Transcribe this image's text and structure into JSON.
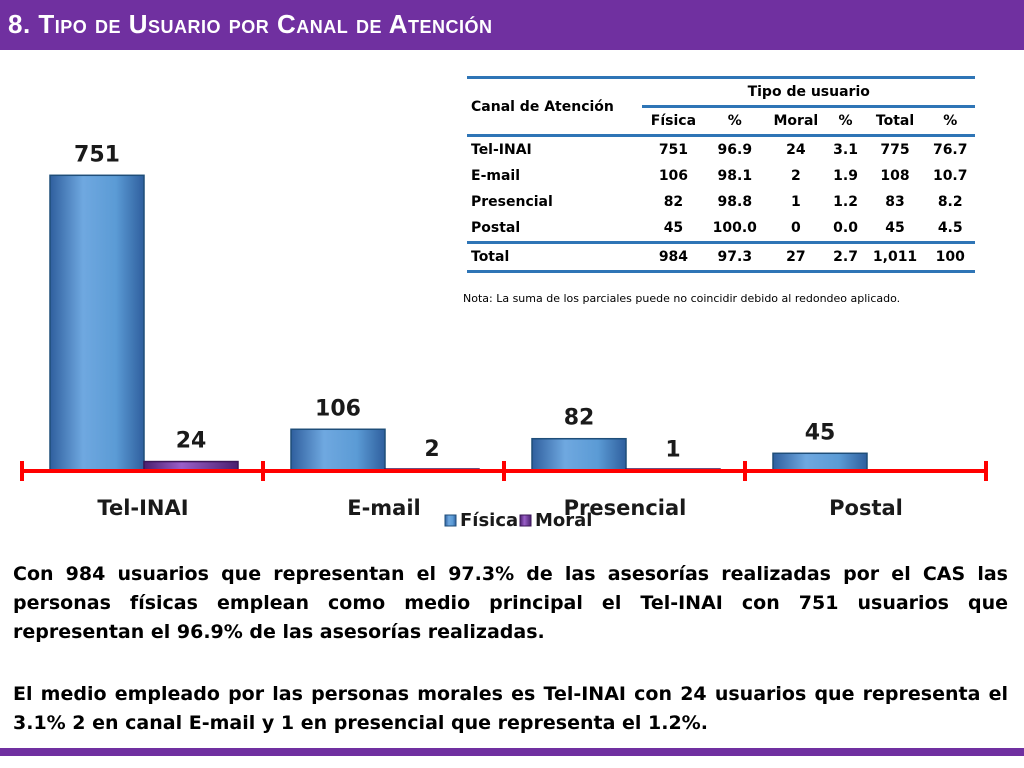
{
  "title": "8. Tipo de Usuario por Canal de Atención",
  "chart_data": {
    "type": "bar",
    "categories": [
      "Tel-INAI",
      "E-mail",
      "Presencial",
      "Postal"
    ],
    "series": [
      {
        "name": "Física",
        "values": [
          751,
          106,
          82,
          45
        ]
      },
      {
        "name": "Moral",
        "values": [
          24,
          2,
          1,
          0
        ]
      }
    ],
    "value_labels": [
      "751",
      "24",
      "106",
      "2",
      "82",
      "1",
      "45"
    ],
    "ylim": [
      0,
      800
    ],
    "legend_position": "bottom-center",
    "colors": {
      "fisica": "#5b9bd5",
      "moral": "#7030a0",
      "axis": "#ff0000"
    }
  },
  "table": {
    "group_header": "Tipo de usuario",
    "row_header": "Canal de Atención",
    "columns": [
      "Física",
      "%",
      "Moral",
      "%",
      "Total",
      "%"
    ],
    "rows": [
      {
        "name": "Tel-INAI",
        "cells": [
          "751",
          "96.9",
          "24",
          "3.1",
          "775",
          "76.7"
        ]
      },
      {
        "name": "E-mail",
        "cells": [
          "106",
          "98.1",
          "2",
          "1.9",
          "108",
          "10.7"
        ]
      },
      {
        "name": "Presencial",
        "cells": [
          "82",
          "98.8",
          "1",
          "1.2",
          "83",
          "8.2"
        ]
      },
      {
        "name": "Postal",
        "cells": [
          "45",
          "100.0",
          "0",
          "0.0",
          "45",
          "4.5"
        ]
      }
    ],
    "total": {
      "name": "Total",
      "cells": [
        "984",
        "97.3",
        "27",
        "2.7",
        "1,011",
        "100"
      ]
    }
  },
  "note": "Nota: La suma de los parciales puede no coincidir debido al redondeo aplicado.",
  "paragraph1": "Con 984 usuarios que representan el 97.3% de las asesorías realizadas por el CAS las personas físicas emplean como medio principal el Tel-INAI con 751 usuarios que representan el 96.9% de las asesorías realizadas.",
  "paragraph2": "El medio empleado por las personas morales es Tel-INAI con 24 usuarios que representa el 3.1%  2 en canal E-mail y 1 en presencial que representa el 1.2%."
}
